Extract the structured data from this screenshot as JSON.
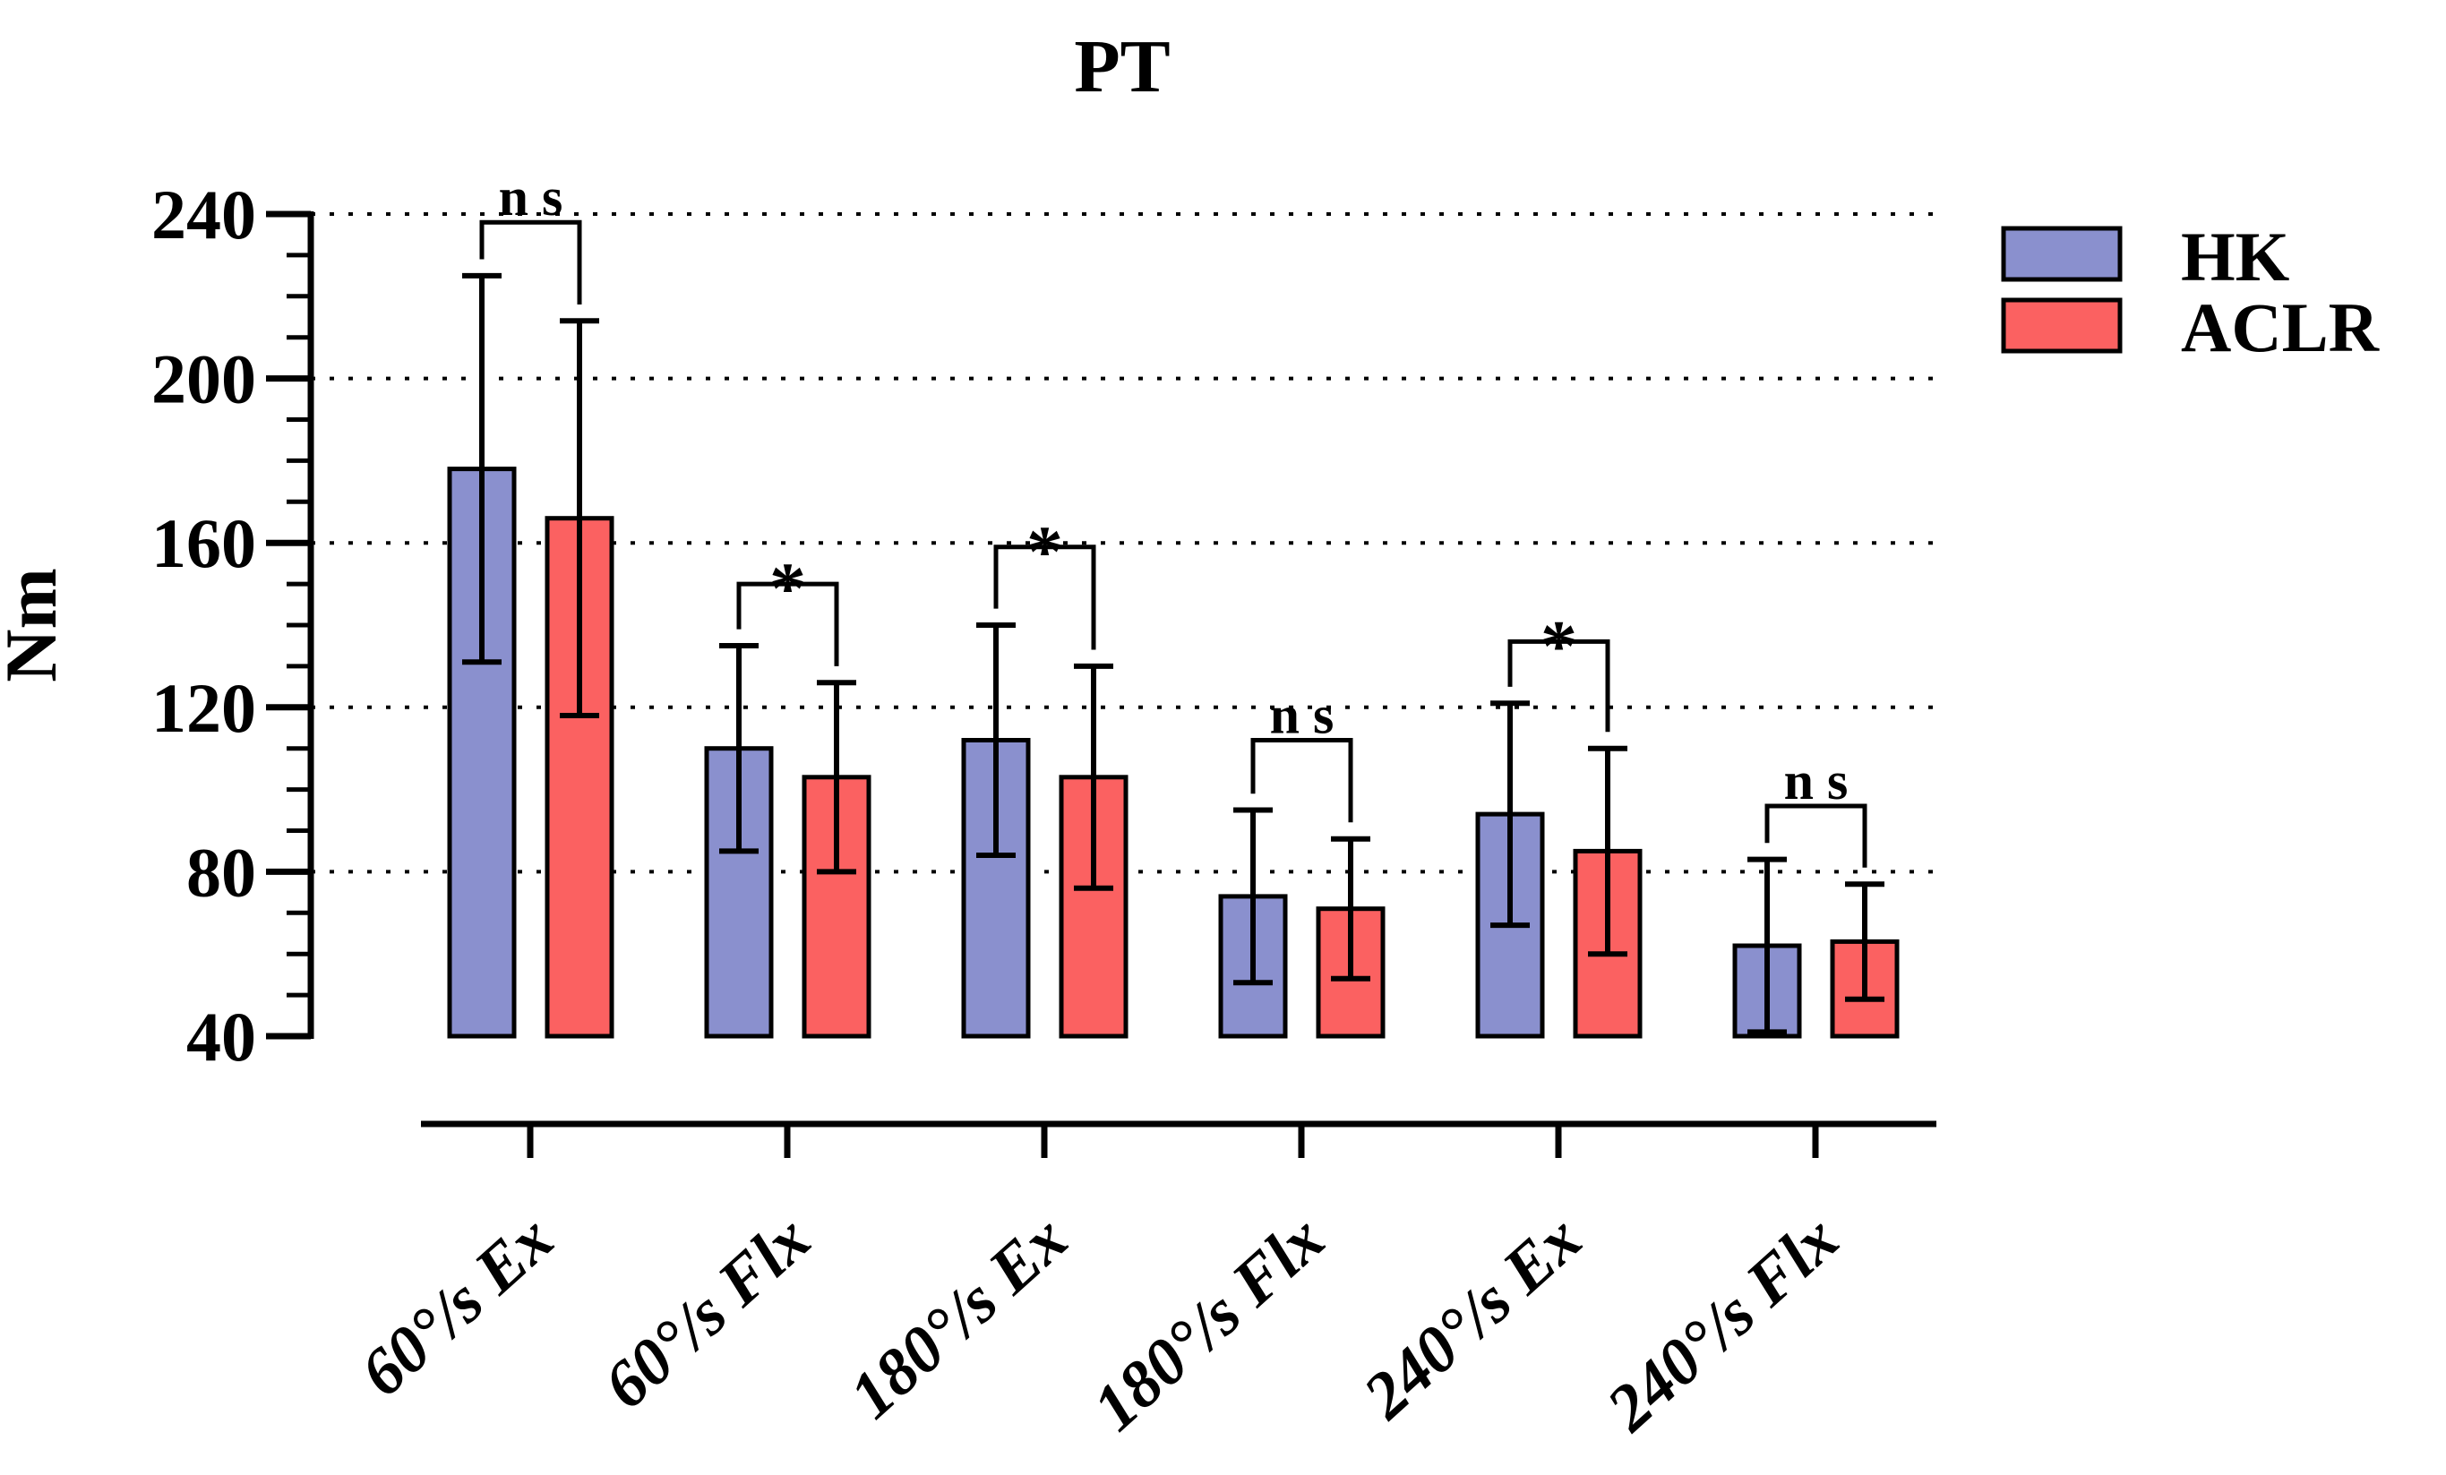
{
  "figure": {
    "background": "#ffffff"
  },
  "chart_data": {
    "type": "bar",
    "title": "PT",
    "ylabel": "Nm",
    "xlabel": "",
    "ylim": [
      40,
      240
    ],
    "yticks": [
      240,
      200,
      160,
      120,
      80,
      40
    ],
    "minor_tick_step_nm": 10,
    "grid": "dotted horizontal lines at major ticks 80-240, none at 40",
    "legend_position": "top-right",
    "categories": [
      "60°/s Ex",
      "60°/s Flx",
      "180°/s Ex",
      "180°/s Flx",
      "240°/s Ex",
      "240°/s Flx"
    ],
    "series": [
      {
        "name": "HK",
        "color": "#8A90CE",
        "values": [
          178,
          110,
          112,
          74,
          94,
          62
        ],
        "errors": [
          47,
          25,
          28,
          21,
          27,
          21
        ]
      },
      {
        "name": "ACLR",
        "color": "#FB6161",
        "values": [
          166,
          103,
          103,
          71,
          85,
          63
        ],
        "errors": [
          48,
          23,
          27,
          17,
          25,
          14
        ]
      }
    ],
    "significance": [
      {
        "label": "n s",
        "bracket_nm": 238
      },
      {
        "label": "*",
        "bracket_nm": 150
      },
      {
        "label": "*",
        "bracket_nm": 159
      },
      {
        "label": "n s",
        "bracket_nm": 112
      },
      {
        "label": "*",
        "bracket_nm": 136
      },
      {
        "label": "n s",
        "bracket_nm": 96
      }
    ],
    "colors": {
      "axis": "#000000",
      "grid": "#000000",
      "error_bar": "#000000",
      "bar_outline": "#000000"
    }
  }
}
